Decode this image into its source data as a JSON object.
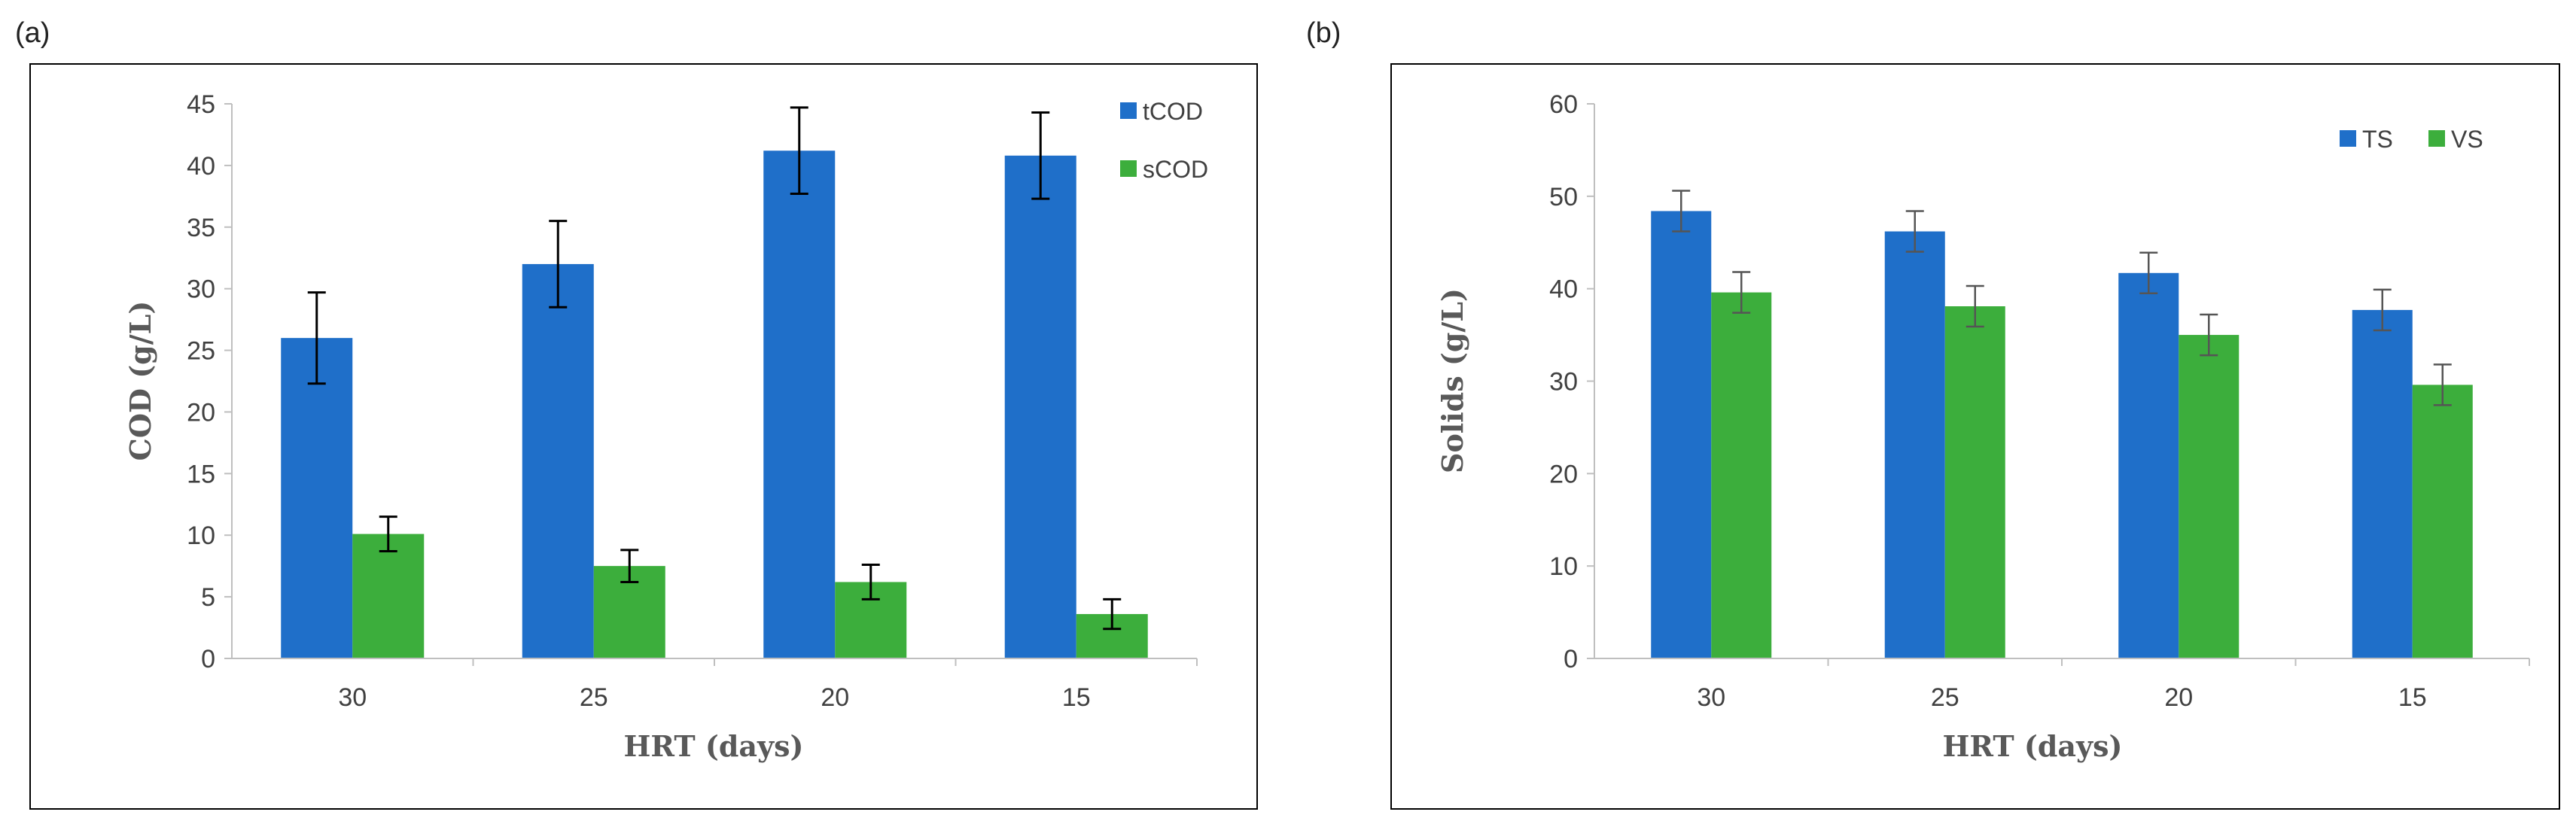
{
  "colors": {
    "blue": "#1f6fc9",
    "green": "#3cae3c",
    "axis": "#bfbfbf",
    "border": "#000000",
    "error": "#000000",
    "error_b": "#555555"
  },
  "chart_data": [
    {
      "id": "a",
      "panel_label": "(a)",
      "type": "bar",
      "title": "",
      "categories": [
        "30",
        "25",
        "20",
        "15"
      ],
      "series": [
        {
          "name": "tCOD",
          "values": [
            26.0,
            32.0,
            41.2,
            40.8
          ],
          "errors": [
            3.7,
            3.5,
            3.5,
            3.5
          ]
        },
        {
          "name": "sCOD",
          "values": [
            10.1,
            7.5,
            6.2,
            3.6
          ],
          "errors": [
            1.4,
            1.3,
            1.4,
            1.2
          ]
        }
      ],
      "xlabel": "HRT (days)",
      "ylabel": "COD (g/L)",
      "ylim": [
        0,
        45
      ],
      "yticks": [
        0,
        5,
        10,
        15,
        20,
        25,
        30,
        35,
        40,
        45
      ],
      "legend": "top-right, stacked"
    },
    {
      "id": "b",
      "panel_label": "(b)",
      "type": "bar",
      "title": "",
      "categories": [
        "30",
        "25",
        "20",
        "15"
      ],
      "series": [
        {
          "name": "TS",
          "values": [
            48.4,
            46.2,
            41.7,
            37.7
          ],
          "errors": [
            2.2,
            2.2,
            2.2,
            2.2
          ]
        },
        {
          "name": "VS",
          "values": [
            39.6,
            38.1,
            35.0,
            29.6
          ],
          "errors": [
            2.2,
            2.2,
            2.2,
            2.2
          ]
        }
      ],
      "xlabel": "HRT (days)",
      "ylabel": "Solids (g/L)",
      "ylim": [
        0,
        60
      ],
      "yticks": [
        0,
        10,
        20,
        30,
        40,
        50,
        60
      ],
      "legend": "top-right, inline"
    }
  ]
}
